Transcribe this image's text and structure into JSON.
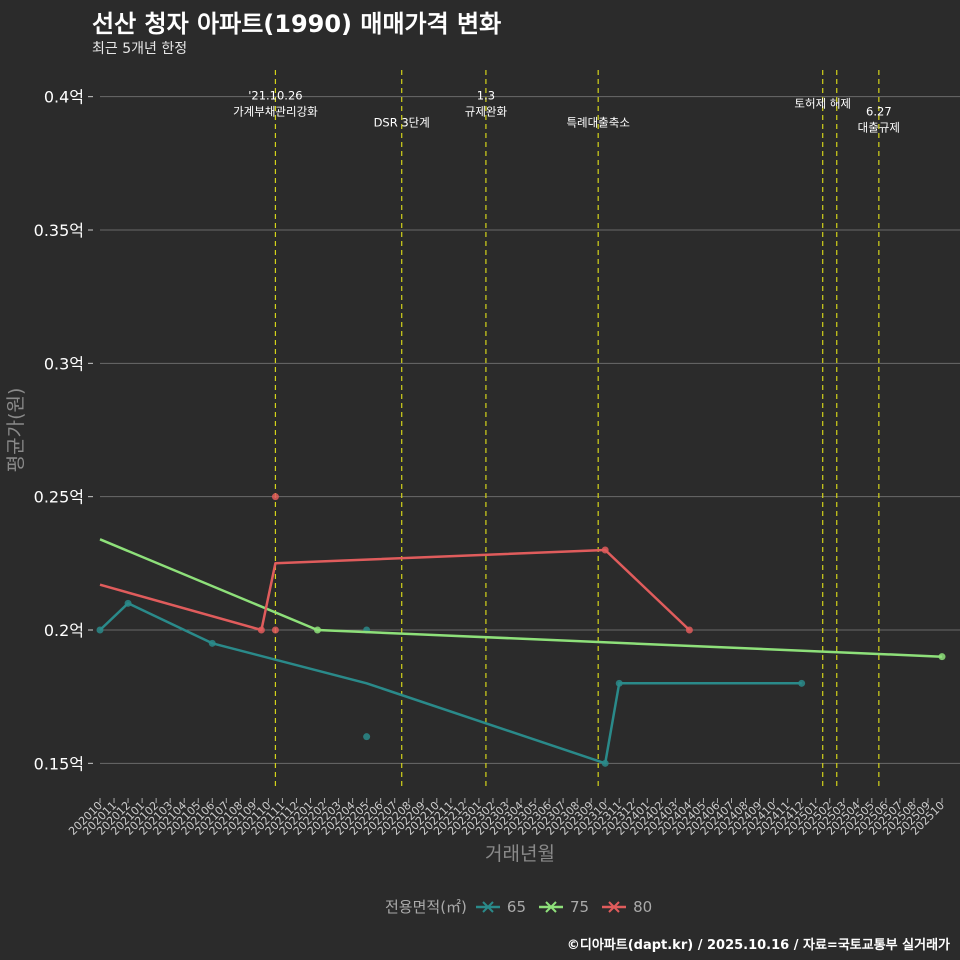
{
  "chart_data": {
    "type": "line",
    "title": "선산 청자 아파트(1990) 매매가격 변화",
    "subtitle": "최근 5개년 한정",
    "xlabel": "거래년월",
    "ylabel": "평균가(원)",
    "ylim": [
      0.14,
      0.41
    ],
    "yticks": [
      0.15,
      0.2,
      0.25,
      0.3,
      0.35,
      0.4
    ],
    "ytick_labels": [
      "0.15억",
      "0.2억",
      "0.25억",
      "0.3억",
      "0.35억",
      "0.4억"
    ],
    "x_categories": [
      "202010",
      "202011",
      "202012",
      "202101",
      "202102",
      "202103",
      "202104",
      "202105",
      "202106",
      "202107",
      "202108",
      "202109",
      "202110",
      "202111",
      "202112",
      "202201",
      "202202",
      "202203",
      "202204",
      "202205",
      "202206",
      "202207",
      "202208",
      "202209",
      "202210",
      "202211",
      "202212",
      "202301",
      "202302",
      "202303",
      "202304",
      "202305",
      "202306",
      "202307",
      "202308",
      "202309",
      "202310",
      "202311",
      "202312",
      "202401",
      "202402",
      "202403",
      "202404",
      "202405",
      "202406",
      "202407",
      "202408",
      "202409",
      "202410",
      "202411",
      "202412",
      "202501",
      "202502",
      "202503",
      "202504",
      "202505",
      "202506",
      "202507",
      "202508",
      "202509",
      "202510"
    ],
    "legend_title": "전용면적(㎡)",
    "colors": {
      "65": "#2a8a8a",
      "75": "#8ee07a",
      "80": "#e05c5c",
      "vline": "#d4d41a"
    },
    "series": [
      {
        "name": "65",
        "line": [
          [
            0,
            0.2
          ],
          [
            2,
            0.21
          ],
          [
            8,
            0.195
          ],
          [
            19,
            0.18
          ],
          [
            36,
            0.15
          ],
          [
            37,
            0.18
          ],
          [
            50,
            0.18
          ]
        ],
        "points": [
          [
            0,
            0.2
          ],
          [
            2,
            0.21
          ],
          [
            8,
            0.195
          ],
          [
            19,
            0.2
          ],
          [
            19,
            0.16
          ],
          [
            36,
            0.15
          ],
          [
            37,
            0.18
          ],
          [
            50,
            0.18
          ]
        ]
      },
      {
        "name": "75",
        "line": [
          [
            0,
            0.234
          ],
          [
            15.5,
            0.2
          ],
          [
            60,
            0.19
          ]
        ],
        "points": [
          [
            15.5,
            0.2
          ],
          [
            60,
            0.19
          ]
        ]
      },
      {
        "name": "80",
        "line": [
          [
            0,
            0.217
          ],
          [
            11.5,
            0.2
          ],
          [
            12.5,
            0.225
          ],
          [
            36,
            0.23
          ],
          [
            42,
            0.2
          ]
        ],
        "points": [
          [
            11.5,
            0.2
          ],
          [
            12.5,
            0.25
          ],
          [
            12.5,
            0.2
          ],
          [
            36,
            0.23
          ],
          [
            42,
            0.2
          ]
        ]
      }
    ],
    "events": [
      {
        "x": 12.5,
        "lines": [
          "'21.10.26",
          "가계부채관리강화"
        ],
        "y": 0.4
      },
      {
        "x": 21.5,
        "lines": [
          "DSR 3단계"
        ],
        "y": 0.39
      },
      {
        "x": 27.5,
        "lines": [
          "1.3",
          "규제완화"
        ],
        "y": 0.4
      },
      {
        "x": 35.5,
        "lines": [
          "특례대출축소"
        ],
        "y": 0.39
      },
      {
        "x": 51.5,
        "lines": [
          "토허제 해제"
        ],
        "y": 0.397
      },
      {
        "x": 52.5,
        "lines": [],
        "y": 0.4
      },
      {
        "x": 55.5,
        "lines": [
          "6.27",
          "대출규제"
        ],
        "y": 0.394
      }
    ],
    "source": "©디아파트(dapt.kr) / 2025.10.16 / 자료=국토교통부 실거래가"
  }
}
